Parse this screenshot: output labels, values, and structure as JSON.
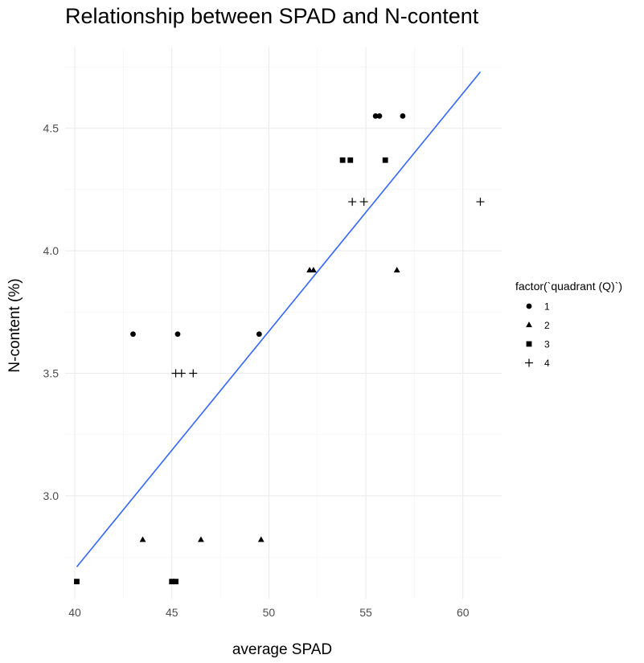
{
  "chart_data": {
    "type": "scatter",
    "title": "Relationship between SPAD and N-content",
    "xlabel": "average SPAD",
    "ylabel": "N-content (%)",
    "xlim": [
      39.5,
      62.0
    ],
    "ylim": [
      2.58,
      4.83
    ],
    "x_ticks": [
      40,
      45,
      50,
      55,
      60
    ],
    "x_tick_labels": [
      "40",
      "45",
      "50",
      "55",
      "60"
    ],
    "y_ticks": [
      3.0,
      3.5,
      4.0,
      4.5
    ],
    "y_tick_labels": [
      "3.0",
      "3.5",
      "4.0",
      "4.5"
    ],
    "grid": true,
    "legend": {
      "title": "factor(`quadrant (Q)`)",
      "position": "right",
      "entries": [
        {
          "label": "1",
          "shape": "circle"
        },
        {
          "label": "2",
          "shape": "triangle"
        },
        {
          "label": "3",
          "shape": "square"
        },
        {
          "label": "4",
          "shape": "plus"
        }
      ]
    },
    "series": [
      {
        "name": "1",
        "shape": "circle",
        "points": [
          [
            43.0,
            3.66
          ],
          [
            45.3,
            3.66
          ],
          [
            49.5,
            3.66
          ],
          [
            55.5,
            4.55
          ],
          [
            55.7,
            4.55
          ],
          [
            56.9,
            4.55
          ]
        ]
      },
      {
        "name": "2",
        "shape": "triangle",
        "points": [
          [
            43.5,
            2.82
          ],
          [
            46.5,
            2.82
          ],
          [
            49.6,
            2.82
          ],
          [
            52.1,
            3.92
          ],
          [
            52.3,
            3.92
          ],
          [
            56.6,
            3.92
          ]
        ]
      },
      {
        "name": "3",
        "shape": "square",
        "points": [
          [
            40.1,
            2.65
          ],
          [
            45.0,
            2.65
          ],
          [
            45.2,
            2.65
          ],
          [
            53.8,
            4.37
          ],
          [
            54.2,
            4.37
          ],
          [
            56.0,
            4.37
          ]
        ]
      },
      {
        "name": "4",
        "shape": "plus",
        "points": [
          [
            45.2,
            3.5
          ],
          [
            45.5,
            3.5
          ],
          [
            46.1,
            3.5
          ],
          [
            54.3,
            4.2
          ],
          [
            54.9,
            4.2
          ],
          [
            60.9,
            4.2
          ]
        ]
      }
    ],
    "trendline": {
      "color": "#3366ff",
      "points": [
        [
          40.1,
          2.71
        ],
        [
          60.9,
          4.73
        ]
      ]
    }
  }
}
